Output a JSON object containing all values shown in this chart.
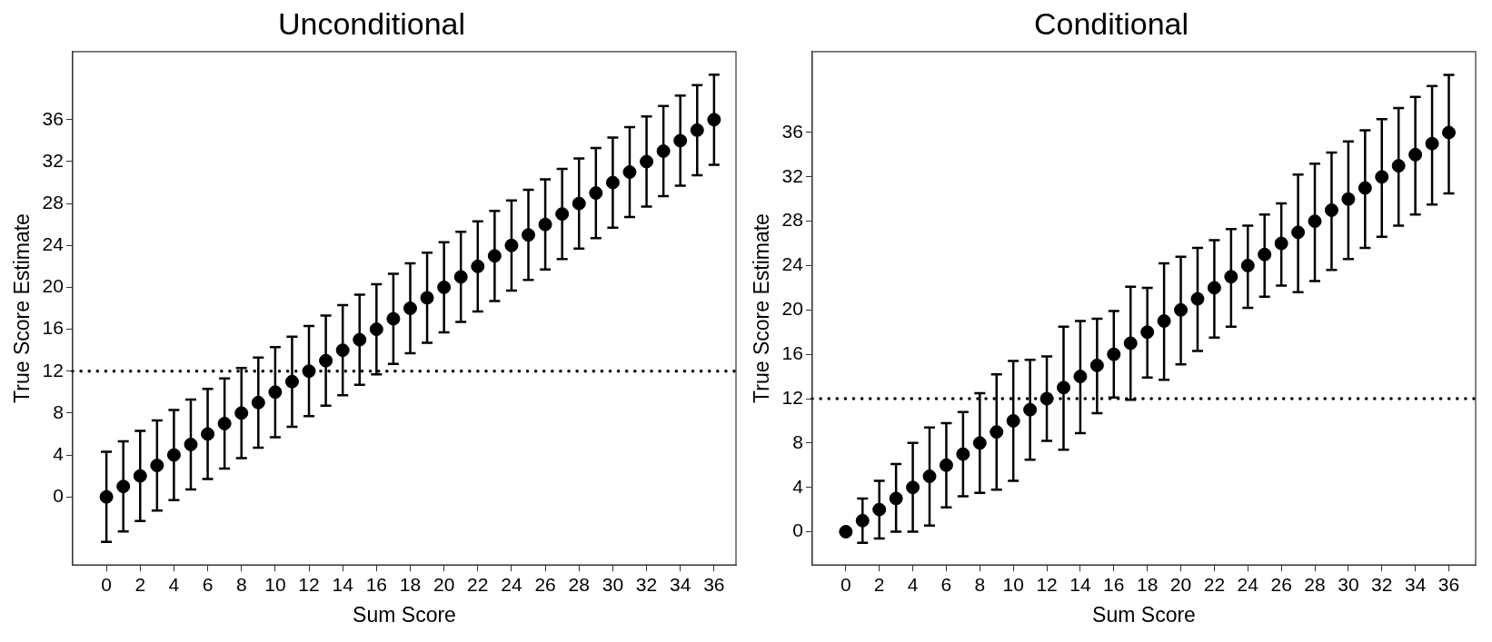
{
  "chart_data": [
    {
      "type": "scatter",
      "title": "Unconditional",
      "xlabel": "Sum Score",
      "ylabel": "True Score Estimate",
      "x": [
        0,
        1,
        2,
        3,
        4,
        5,
        6,
        7,
        8,
        9,
        10,
        11,
        12,
        13,
        14,
        15,
        16,
        17,
        18,
        19,
        20,
        21,
        22,
        23,
        24,
        25,
        26,
        27,
        28,
        29,
        30,
        31,
        32,
        33,
        34,
        35,
        36
      ],
      "series": [
        {
          "color": "#000000",
          "values": [
            0,
            1,
            2,
            3,
            4,
            5,
            6,
            7,
            8,
            9,
            10,
            11,
            12,
            13,
            14,
            15,
            16,
            17,
            18,
            19,
            20,
            21,
            22,
            23,
            24,
            25,
            26,
            27,
            28,
            29,
            30,
            31,
            32,
            33,
            34,
            35,
            36
          ],
          "errors": [
            4.3,
            4.3,
            4.3,
            4.3,
            4.3,
            4.3,
            4.3,
            4.3,
            4.3,
            4.3,
            4.3,
            4.3,
            4.3,
            4.3,
            4.3,
            4.3,
            4.3,
            4.3,
            4.3,
            4.3,
            4.3,
            4.3,
            4.3,
            4.3,
            4.3,
            4.3,
            4.3,
            4.3,
            4.3,
            4.3,
            4.3,
            4.3,
            4.3,
            4.3,
            4.3,
            4.3,
            4.3
          ]
        }
      ],
      "xlim": [
        -2,
        37.3
      ],
      "xticks": [
        0,
        2,
        4,
        6,
        8,
        10,
        12,
        14,
        16,
        18,
        20,
        22,
        24,
        26,
        28,
        30,
        32,
        34,
        36
      ],
      "ylim": [
        -6.5,
        42.5
      ],
      "yticks": [
        0,
        4,
        8,
        12,
        16,
        20,
        24,
        28,
        32,
        36
      ],
      "ref_lines": [
        {
          "axis": "y",
          "value": 12,
          "line_style": "dotted",
          "color": "#000000"
        }
      ],
      "marker": "circle",
      "grid": false,
      "legend": false
    },
    {
      "type": "scatter",
      "title": "Conditional",
      "xlabel": "Sum Score",
      "ylabel": "True Score Estimate",
      "x": [
        0,
        1,
        2,
        3,
        4,
        5,
        6,
        7,
        8,
        9,
        10,
        11,
        12,
        13,
        14,
        15,
        16,
        17,
        18,
        19,
        20,
        21,
        22,
        23,
        24,
        25,
        26,
        27,
        28,
        29,
        30,
        31,
        32,
        33,
        34,
        35,
        36
      ],
      "series": [
        {
          "color": "#000000",
          "values": [
            0,
            1,
            2,
            3,
            4,
            5,
            6,
            7,
            8,
            9,
            10,
            11,
            12,
            13,
            14,
            15,
            16,
            17,
            18,
            19,
            20,
            21,
            22,
            23,
            24,
            25,
            26,
            27,
            28,
            29,
            30,
            31,
            32,
            33,
            34,
            35,
            36
          ],
          "errors": [
            null,
            [
              -1.0,
              3.0
            ],
            [
              -0.6,
              4.6
            ],
            [
              0.0,
              6.1
            ],
            [
              0.0,
              8.0
            ],
            [
              0.55,
              9.4
            ],
            [
              2.2,
              9.8
            ],
            [
              3.2,
              10.8
            ],
            [
              3.5,
              12.5
            ],
            [
              3.8,
              14.2
            ],
            [
              4.6,
              15.4
            ],
            [
              6.5,
              15.5
            ],
            [
              8.2,
              15.8
            ],
            [
              7.4,
              18.5
            ],
            [
              8.9,
              19.0
            ],
            [
              10.7,
              19.2
            ],
            [
              12.1,
              19.9
            ],
            [
              11.9,
              22.1
            ],
            [
              13.9,
              22.0
            ],
            [
              13.7,
              24.2
            ],
            [
              15.1,
              24.8
            ],
            [
              16.3,
              25.6
            ],
            [
              17.5,
              26.3
            ],
            [
              18.5,
              27.3
            ],
            [
              20.2,
              27.6
            ],
            [
              21.2,
              28.6
            ],
            [
              22.2,
              29.6
            ],
            [
              21.6,
              32.2
            ],
            [
              22.6,
              33.2
            ],
            [
              23.6,
              34.2
            ],
            [
              24.6,
              35.2
            ],
            [
              25.6,
              36.2
            ],
            [
              26.6,
              37.2
            ],
            [
              27.6,
              38.2
            ],
            [
              28.6,
              39.2
            ],
            [
              29.5,
              40.2
            ],
            [
              30.5,
              41.2
            ]
          ]
        }
      ],
      "xlim": [
        -2,
        37.6
      ],
      "xticks": [
        0,
        2,
        4,
        6,
        8,
        10,
        12,
        14,
        16,
        18,
        20,
        22,
        24,
        26,
        28,
        30,
        32,
        34,
        36
      ],
      "ylim": [
        -3,
        43.3
      ],
      "yticks": [
        0,
        4,
        8,
        12,
        16,
        20,
        24,
        28,
        32,
        36
      ],
      "ref_lines": [
        {
          "axis": "y",
          "value": 12,
          "line_style": "dotted",
          "color": "#000000"
        }
      ],
      "marker": "circle",
      "grid": false,
      "legend": false
    }
  ]
}
